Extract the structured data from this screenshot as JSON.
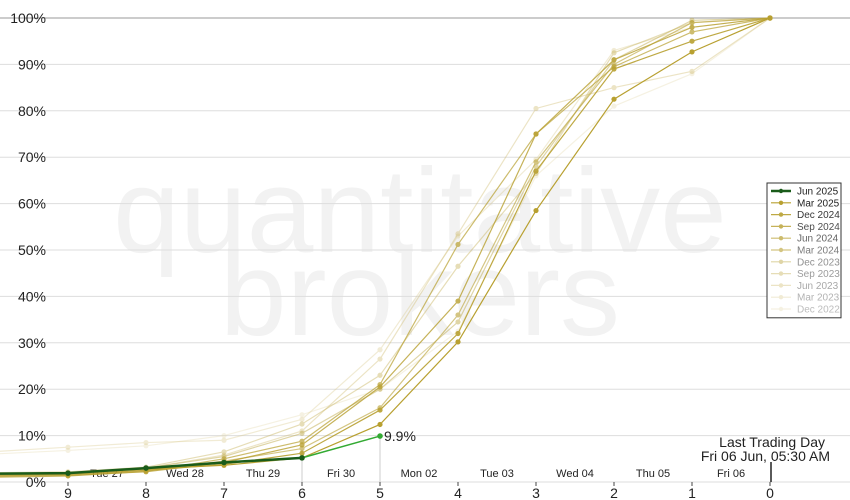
{
  "chart_data": {
    "type": "line",
    "watermark": [
      "quantitative",
      "brokers"
    ],
    "x_ticks": [
      9,
      8,
      7,
      6,
      5,
      4,
      3,
      2,
      1,
      0
    ],
    "xlim": [
      10,
      0
    ],
    "ylim": [
      0,
      100
    ],
    "y_ticks": [
      "0%",
      "10%",
      "20%",
      "30%",
      "40%",
      "50%",
      "60%",
      "70%",
      "80%",
      "90%",
      "100%"
    ],
    "day_labels": [
      {
        "label": "Tue 27",
        "x": 8.5
      },
      {
        "label": "Wed 28",
        "x": 7.5
      },
      {
        "label": "Thu 29",
        "x": 6.5
      },
      {
        "label": "Fri 30",
        "x": 5.5
      },
      {
        "label": "Mon 02",
        "x": 4.5
      },
      {
        "label": "Tue 03",
        "x": 3.5
      },
      {
        "label": "Wed 04",
        "x": 2.5
      },
      {
        "label": "Thu 05",
        "x": 1.5
      },
      {
        "label": "Fri 06",
        "x": 0.5
      }
    ],
    "current_value_label": "9.9%",
    "annotation": {
      "line1": "Last Trading Day",
      "line2": "Fri 06 Jun, 05:30 AM"
    },
    "current": {
      "name": "Jun 2025",
      "color": "#1a5c1a",
      "segment_color": "#33aa33",
      "x": [
        10.0,
        9,
        8,
        7,
        6,
        5
      ],
      "y": [
        1.8,
        1.9,
        3.0,
        4.2,
        5.2,
        9.9
      ]
    },
    "series": [
      {
        "name": "Mar 2025",
        "color": "#b8a030",
        "opacity": 1.0,
        "x": [
          10,
          9,
          8,
          7,
          6,
          5,
          4,
          3,
          2,
          1,
          0
        ],
        "y": [
          1.8,
          1.9,
          2.8,
          3.6,
          5.2,
          12.4,
          30.2,
          58.5,
          82.5,
          92.7,
          100
        ]
      },
      {
        "name": "Dec 2024",
        "color": "#b8a030",
        "opacity": 0.9,
        "x": [
          10,
          9,
          8,
          7,
          6,
          5,
          4,
          3,
          2,
          1,
          0
        ],
        "y": [
          1.5,
          1.6,
          2.5,
          3.8,
          6.2,
          15.5,
          32.0,
          67.0,
          89.0,
          95.0,
          100
        ]
      },
      {
        "name": "Sep 2024",
        "color": "#b8a030",
        "opacity": 0.8,
        "x": [
          10,
          9,
          8,
          7,
          6,
          5,
          4,
          3,
          2,
          1,
          0
        ],
        "y": [
          1.2,
          1.4,
          2.2,
          4.2,
          8.0,
          20.5,
          39.0,
          75.0,
          91.0,
          98.0,
          100
        ]
      },
      {
        "name": "Jun 2024",
        "color": "#b8a030",
        "opacity": 0.7,
        "x": [
          10,
          9,
          8,
          7,
          6,
          5,
          4,
          3,
          2,
          1,
          0
        ],
        "y": [
          1.0,
          1.3,
          2.3,
          5.0,
          8.8,
          21.0,
          51.2,
          75.0,
          89.5,
          97.0,
          100
        ]
      },
      {
        "name": "Mar 2024",
        "color": "#b8a030",
        "opacity": 0.6,
        "x": [
          10,
          9,
          8,
          7,
          6,
          5,
          4,
          3,
          2,
          1,
          0
        ],
        "y": [
          1.3,
          1.7,
          2.6,
          4.5,
          7.2,
          16.0,
          36.0,
          69.0,
          90.0,
          99.0,
          100
        ]
      },
      {
        "name": "Dec 2023",
        "color": "#c0ac50",
        "opacity": 0.5,
        "x": [
          10,
          9,
          8,
          7,
          6,
          5,
          4,
          3,
          2,
          1,
          0
        ],
        "y": [
          1.5,
          1.8,
          3.0,
          5.5,
          10.5,
          20.0,
          34.5,
          68.0,
          91.0,
          99.5,
          100
        ]
      },
      {
        "name": "Sep 2023",
        "color": "#c8b460",
        "opacity": 0.45,
        "x": [
          10,
          9,
          8,
          7,
          6,
          5,
          4,
          3,
          2,
          1,
          0
        ],
        "y": [
          2.0,
          2.2,
          3.2,
          6.5,
          12.5,
          23.0,
          46.5,
          66.5,
          92.5,
          99.0,
          100
        ]
      },
      {
        "name": "Jun 2023",
        "color": "#d0bc70",
        "opacity": 0.4,
        "x": [
          10,
          9,
          8,
          7,
          6,
          5,
          4,
          3,
          2,
          1,
          0
        ],
        "y": [
          1.8,
          2.0,
          3.0,
          5.8,
          11.0,
          26.5,
          53.5,
          80.5,
          85.0,
          88.5,
          100
        ]
      },
      {
        "name": "Mar 2023",
        "color": "#d8c888",
        "opacity": 0.35,
        "x": [
          10,
          9,
          8,
          7,
          6,
          5,
          4,
          3,
          2,
          1,
          0
        ],
        "y": [
          6.5,
          7.5,
          8.5,
          9.0,
          13.5,
          28.5,
          53.0,
          69.5,
          93.0,
          98.0,
          100
        ]
      },
      {
        "name": "Dec 2022",
        "color": "#e0d4a0",
        "opacity": 0.3,
        "x": [
          10,
          9,
          8,
          7,
          6,
          5,
          4,
          3,
          2,
          1,
          0
        ],
        "y": [
          6.0,
          6.8,
          7.8,
          10.0,
          14.5,
          20.0,
          32.5,
          66.0,
          81.0,
          88.0,
          100
        ]
      }
    ]
  }
}
